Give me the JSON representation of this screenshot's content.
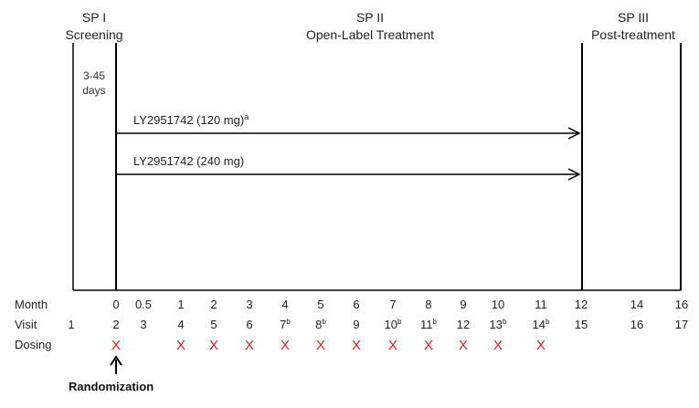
{
  "periods": [
    {
      "title": "SP I",
      "subtitle": "Screening",
      "note": [
        "3-45",
        "days"
      ]
    },
    {
      "title": "SP II",
      "subtitle": "Open-Label Treatment"
    },
    {
      "title": "SP III",
      "subtitle": "Post-treatment"
    }
  ],
  "arms": [
    {
      "label": "LY2951742 (120 mg)",
      "sup": "a"
    },
    {
      "label": "LY2951742 (240 mg)",
      "sup": ""
    }
  ],
  "rows": {
    "month": "Month",
    "visit": "Visit",
    "dosing": "Dosing"
  },
  "columns": [
    {
      "month": "",
      "visit": "1",
      "sup": "",
      "dose": false
    },
    {
      "month": "0",
      "visit": "2",
      "sup": "",
      "dose": true
    },
    {
      "month": "0.5",
      "visit": "3",
      "sup": "",
      "dose": false
    },
    {
      "month": "1",
      "visit": "4",
      "sup": "",
      "dose": true
    },
    {
      "month": "2",
      "visit": "5",
      "sup": "",
      "dose": true
    },
    {
      "month": "3",
      "visit": "6",
      "sup": "",
      "dose": true
    },
    {
      "month": "4",
      "visit": "7",
      "sup": "b",
      "dose": true
    },
    {
      "month": "5",
      "visit": "8",
      "sup": "b",
      "dose": true
    },
    {
      "month": "6",
      "visit": "9",
      "sup": "",
      "dose": true
    },
    {
      "month": "7",
      "visit": "10",
      "sup": "b",
      "dose": true
    },
    {
      "month": "8",
      "visit": "11",
      "sup": "b",
      "dose": true
    },
    {
      "month": "9",
      "visit": "12",
      "sup": "",
      "dose": true
    },
    {
      "month": "10",
      "visit": "13",
      "sup": "b",
      "dose": true
    },
    {
      "month": "11",
      "visit": "14",
      "sup": "b",
      "dose": true
    },
    {
      "month": "12",
      "visit": "15",
      "sup": "",
      "dose": false
    },
    {
      "month": "14",
      "visit": "16",
      "sup": "",
      "dose": false
    },
    {
      "month": "16",
      "visit": "17",
      "sup": "",
      "dose": false
    }
  ],
  "dose_mark": "X",
  "randomization": "Randomization",
  "colors": {
    "dose_mark": "#e02020",
    "lines": "#000000"
  }
}
